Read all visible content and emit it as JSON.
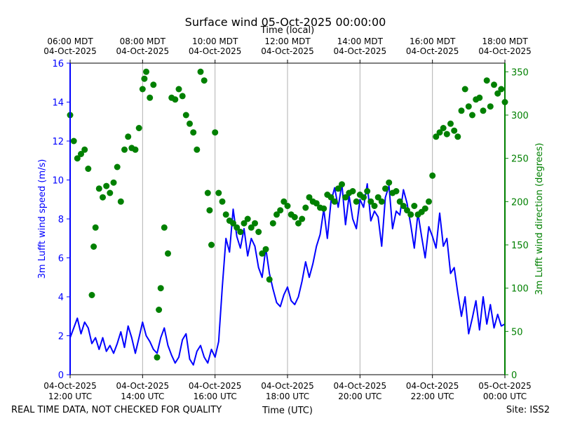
{
  "chart_data": {
    "type": "line+scatter",
    "title": "Surface wind 05-Oct-2025 00:00:00",
    "top_axis_label": "Time (local)",
    "xlabel": "Time (UTC)",
    "footer_left": "REAL TIME DATA, NOT CHECKED FOR QUALITY",
    "footer_right": "Site: ISS2",
    "x_ticks_utc": [
      {
        "hour": 12,
        "date": "04-Oct-2025",
        "time": "12:00 UTC"
      },
      {
        "hour": 14,
        "date": "04-Oct-2025",
        "time": "14:00 UTC"
      },
      {
        "hour": 16,
        "date": "04-Oct-2025",
        "time": "16:00 UTC"
      },
      {
        "hour": 18,
        "date": "04-Oct-2025",
        "time": "18:00 UTC"
      },
      {
        "hour": 20,
        "date": "04-Oct-2025",
        "time": "20:00 UTC"
      },
      {
        "hour": 22,
        "date": "04-Oct-2025",
        "time": "22:00 UTC"
      },
      {
        "hour": 24,
        "date": "05-Oct-2025",
        "time": "00:00 UTC"
      }
    ],
    "x_ticks_local": [
      {
        "hour": 12,
        "time": "06:00 MDT",
        "date": "04-Oct-2025"
      },
      {
        "hour": 14,
        "time": "08:00 MDT",
        "date": "04-Oct-2025"
      },
      {
        "hour": 16,
        "time": "10:00 MDT",
        "date": "04-Oct-2025"
      },
      {
        "hour": 18,
        "time": "12:00 MDT",
        "date": "04-Oct-2025"
      },
      {
        "hour": 20,
        "time": "14:00 MDT",
        "date": "04-Oct-2025"
      },
      {
        "hour": 22,
        "time": "16:00 MDT",
        "date": "04-Oct-2025"
      },
      {
        "hour": 24,
        "time": "18:00 MDT",
        "date": "04-Oct-2025"
      }
    ],
    "xlim": [
      12,
      24
    ],
    "y_left": {
      "label": "3m Lufft wind speed (m/s)",
      "lim": [
        0,
        16
      ],
      "ticks": [
        0,
        2,
        4,
        6,
        8,
        10,
        12,
        14,
        16
      ],
      "color": "#0000ff"
    },
    "y_right": {
      "label": "3m Lufft wind direction (degrees)",
      "lim": [
        0,
        360
      ],
      "ticks": [
        0,
        50,
        100,
        150,
        200,
        250,
        300,
        350
      ],
      "color": "#008000"
    },
    "series": [
      {
        "name": "Wind speed",
        "style": "line",
        "axis": "left",
        "color": "#0000ff",
        "points": [
          [
            12.0,
            1.9
          ],
          [
            12.1,
            2.4
          ],
          [
            12.2,
            2.9
          ],
          [
            12.3,
            2.1
          ],
          [
            12.4,
            2.7
          ],
          [
            12.5,
            2.4
          ],
          [
            12.6,
            1.6
          ],
          [
            12.7,
            1.9
          ],
          [
            12.8,
            1.3
          ],
          [
            12.9,
            1.9
          ],
          [
            13.0,
            1.2
          ],
          [
            13.1,
            1.5
          ],
          [
            13.2,
            1.1
          ],
          [
            13.3,
            1.6
          ],
          [
            13.4,
            2.2
          ],
          [
            13.5,
            1.4
          ],
          [
            13.6,
            2.5
          ],
          [
            13.7,
            1.9
          ],
          [
            13.8,
            1.1
          ],
          [
            13.9,
            1.9
          ],
          [
            14.0,
            2.7
          ],
          [
            14.1,
            2.0
          ],
          [
            14.2,
            1.7
          ],
          [
            14.3,
            1.3
          ],
          [
            14.4,
            1.1
          ],
          [
            14.5,
            1.9
          ],
          [
            14.6,
            2.4
          ],
          [
            14.7,
            1.5
          ],
          [
            14.8,
            1.0
          ],
          [
            14.9,
            0.6
          ],
          [
            15.0,
            0.9
          ],
          [
            15.1,
            1.8
          ],
          [
            15.2,
            2.1
          ],
          [
            15.3,
            0.8
          ],
          [
            15.4,
            0.5
          ],
          [
            15.5,
            1.2
          ],
          [
            15.6,
            1.5
          ],
          [
            15.7,
            0.9
          ],
          [
            15.8,
            0.6
          ],
          [
            15.9,
            1.3
          ],
          [
            16.0,
            0.9
          ],
          [
            16.1,
            1.7
          ],
          [
            16.2,
            4.5
          ],
          [
            16.3,
            7.0
          ],
          [
            16.4,
            6.3
          ],
          [
            16.5,
            8.5
          ],
          [
            16.6,
            7.1
          ],
          [
            16.7,
            6.5
          ],
          [
            16.8,
            7.5
          ],
          [
            16.9,
            6.1
          ],
          [
            17.0,
            7.0
          ],
          [
            17.1,
            6.6
          ],
          [
            17.2,
            5.5
          ],
          [
            17.3,
            5.0
          ],
          [
            17.4,
            6.5
          ],
          [
            17.5,
            5.2
          ],
          [
            17.6,
            4.4
          ],
          [
            17.7,
            3.7
          ],
          [
            17.8,
            3.5
          ],
          [
            17.9,
            4.1
          ],
          [
            18.0,
            4.5
          ],
          [
            18.1,
            3.8
          ],
          [
            18.2,
            3.6
          ],
          [
            18.3,
            4.0
          ],
          [
            18.4,
            4.8
          ],
          [
            18.5,
            5.8
          ],
          [
            18.6,
            5.0
          ],
          [
            18.7,
            5.7
          ],
          [
            18.8,
            6.6
          ],
          [
            18.9,
            7.2
          ],
          [
            19.0,
            8.5
          ],
          [
            19.1,
            7.0
          ],
          [
            19.2,
            8.9
          ],
          [
            19.3,
            9.6
          ],
          [
            19.4,
            8.6
          ],
          [
            19.5,
            9.8
          ],
          [
            19.6,
            7.7
          ],
          [
            19.7,
            9.2
          ],
          [
            19.8,
            8.0
          ],
          [
            19.9,
            7.5
          ],
          [
            20.0,
            9.0
          ],
          [
            20.1,
            8.6
          ],
          [
            20.2,
            9.8
          ],
          [
            20.3,
            7.9
          ],
          [
            20.4,
            8.4
          ],
          [
            20.5,
            8.1
          ],
          [
            20.6,
            6.6
          ],
          [
            20.7,
            9.1
          ],
          [
            20.8,
            9.7
          ],
          [
            20.9,
            7.5
          ],
          [
            21.0,
            8.4
          ],
          [
            21.1,
            8.2
          ],
          [
            21.2,
            9.5
          ],
          [
            21.3,
            8.8
          ],
          [
            21.4,
            7.7
          ],
          [
            21.5,
            6.5
          ],
          [
            21.6,
            8.3
          ],
          [
            21.7,
            7.1
          ],
          [
            21.8,
            6.0
          ],
          [
            21.9,
            7.6
          ],
          [
            22.0,
            7.1
          ],
          [
            22.1,
            6.5
          ],
          [
            22.2,
            8.3
          ],
          [
            22.3,
            6.6
          ],
          [
            22.4,
            7.0
          ],
          [
            22.5,
            5.2
          ],
          [
            22.6,
            5.5
          ],
          [
            22.7,
            4.2
          ],
          [
            22.8,
            3.0
          ],
          [
            22.9,
            4.0
          ],
          [
            23.0,
            2.1
          ],
          [
            23.1,
            2.9
          ],
          [
            23.2,
            3.8
          ],
          [
            23.3,
            2.3
          ],
          [
            23.4,
            4.0
          ],
          [
            23.5,
            2.6
          ],
          [
            23.6,
            3.6
          ],
          [
            23.7,
            2.4
          ],
          [
            23.8,
            3.1
          ],
          [
            23.9,
            2.5
          ],
          [
            24.0,
            2.6
          ]
        ]
      },
      {
        "name": "Wind direction",
        "style": "scatter",
        "axis": "right",
        "color": "#008000",
        "points": [
          [
            12.0,
            300
          ],
          [
            12.1,
            270
          ],
          [
            12.2,
            250
          ],
          [
            12.3,
            255
          ],
          [
            12.4,
            260
          ],
          [
            12.5,
            238
          ],
          [
            12.6,
            92
          ],
          [
            12.65,
            148
          ],
          [
            12.7,
            170
          ],
          [
            12.8,
            215
          ],
          [
            12.9,
            205
          ],
          [
            13.0,
            218
          ],
          [
            13.1,
            210
          ],
          [
            13.2,
            222
          ],
          [
            13.3,
            240
          ],
          [
            13.4,
            200
          ],
          [
            13.5,
            260
          ],
          [
            13.6,
            275
          ],
          [
            13.7,
            262
          ],
          [
            13.8,
            260
          ],
          [
            13.9,
            285
          ],
          [
            14.0,
            330
          ],
          [
            14.05,
            342
          ],
          [
            14.1,
            350
          ],
          [
            14.2,
            320
          ],
          [
            14.3,
            335
          ],
          [
            14.4,
            20
          ],
          [
            14.45,
            75
          ],
          [
            14.5,
            100
          ],
          [
            14.6,
            170
          ],
          [
            14.7,
            140
          ],
          [
            14.8,
            320
          ],
          [
            14.9,
            318
          ],
          [
            15.0,
            330
          ],
          [
            15.1,
            322
          ],
          [
            15.2,
            300
          ],
          [
            15.3,
            290
          ],
          [
            15.4,
            280
          ],
          [
            15.5,
            260
          ],
          [
            15.6,
            350
          ],
          [
            15.7,
            340
          ],
          [
            15.8,
            210
          ],
          [
            15.85,
            190
          ],
          [
            15.9,
            150
          ],
          [
            16.0,
            280
          ],
          [
            16.1,
            210
          ],
          [
            16.2,
            200
          ],
          [
            16.3,
            185
          ],
          [
            16.4,
            178
          ],
          [
            16.5,
            175
          ],
          [
            16.6,
            170
          ],
          [
            16.7,
            165
          ],
          [
            16.8,
            175
          ],
          [
            16.9,
            180
          ],
          [
            17.0,
            170
          ],
          [
            17.1,
            175
          ],
          [
            17.2,
            165
          ],
          [
            17.3,
            140
          ],
          [
            17.4,
            145
          ],
          [
            17.5,
            110
          ],
          [
            17.6,
            175
          ],
          [
            17.7,
            185
          ],
          [
            17.8,
            190
          ],
          [
            17.9,
            200
          ],
          [
            18.0,
            195
          ],
          [
            18.1,
            185
          ],
          [
            18.2,
            182
          ],
          [
            18.3,
            175
          ],
          [
            18.4,
            180
          ],
          [
            18.5,
            193
          ],
          [
            18.6,
            205
          ],
          [
            18.7,
            200
          ],
          [
            18.8,
            198
          ],
          [
            18.9,
            193
          ],
          [
            19.0,
            192
          ],
          [
            19.1,
            208
          ],
          [
            19.2,
            205
          ],
          [
            19.3,
            200
          ],
          [
            19.4,
            215
          ],
          [
            19.5,
            220
          ],
          [
            19.6,
            205
          ],
          [
            19.7,
            210
          ],
          [
            19.8,
            212
          ],
          [
            19.9,
            200
          ],
          [
            20.0,
            208
          ],
          [
            20.1,
            205
          ],
          [
            20.2,
            212
          ],
          [
            20.3,
            200
          ],
          [
            20.4,
            195
          ],
          [
            20.5,
            205
          ],
          [
            20.6,
            200
          ],
          [
            20.7,
            215
          ],
          [
            20.8,
            222
          ],
          [
            20.9,
            210
          ],
          [
            21.0,
            212
          ],
          [
            21.1,
            200
          ],
          [
            21.2,
            195
          ],
          [
            21.3,
            190
          ],
          [
            21.4,
            185
          ],
          [
            21.5,
            195
          ],
          [
            21.6,
            185
          ],
          [
            21.7,
            188
          ],
          [
            21.8,
            192
          ],
          [
            21.9,
            200
          ],
          [
            22.0,
            230
          ],
          [
            22.1,
            275
          ],
          [
            22.2,
            280
          ],
          [
            22.3,
            285
          ],
          [
            22.4,
            278
          ],
          [
            22.5,
            290
          ],
          [
            22.6,
            282
          ],
          [
            22.7,
            275
          ],
          [
            22.8,
            305
          ],
          [
            22.9,
            330
          ],
          [
            23.0,
            310
          ],
          [
            23.1,
            300
          ],
          [
            23.2,
            318
          ],
          [
            23.3,
            320
          ],
          [
            23.4,
            305
          ],
          [
            23.5,
            340
          ],
          [
            23.6,
            310
          ],
          [
            23.7,
            335
          ],
          [
            23.8,
            325
          ],
          [
            23.9,
            330
          ],
          [
            24.0,
            315
          ]
        ]
      }
    ]
  }
}
